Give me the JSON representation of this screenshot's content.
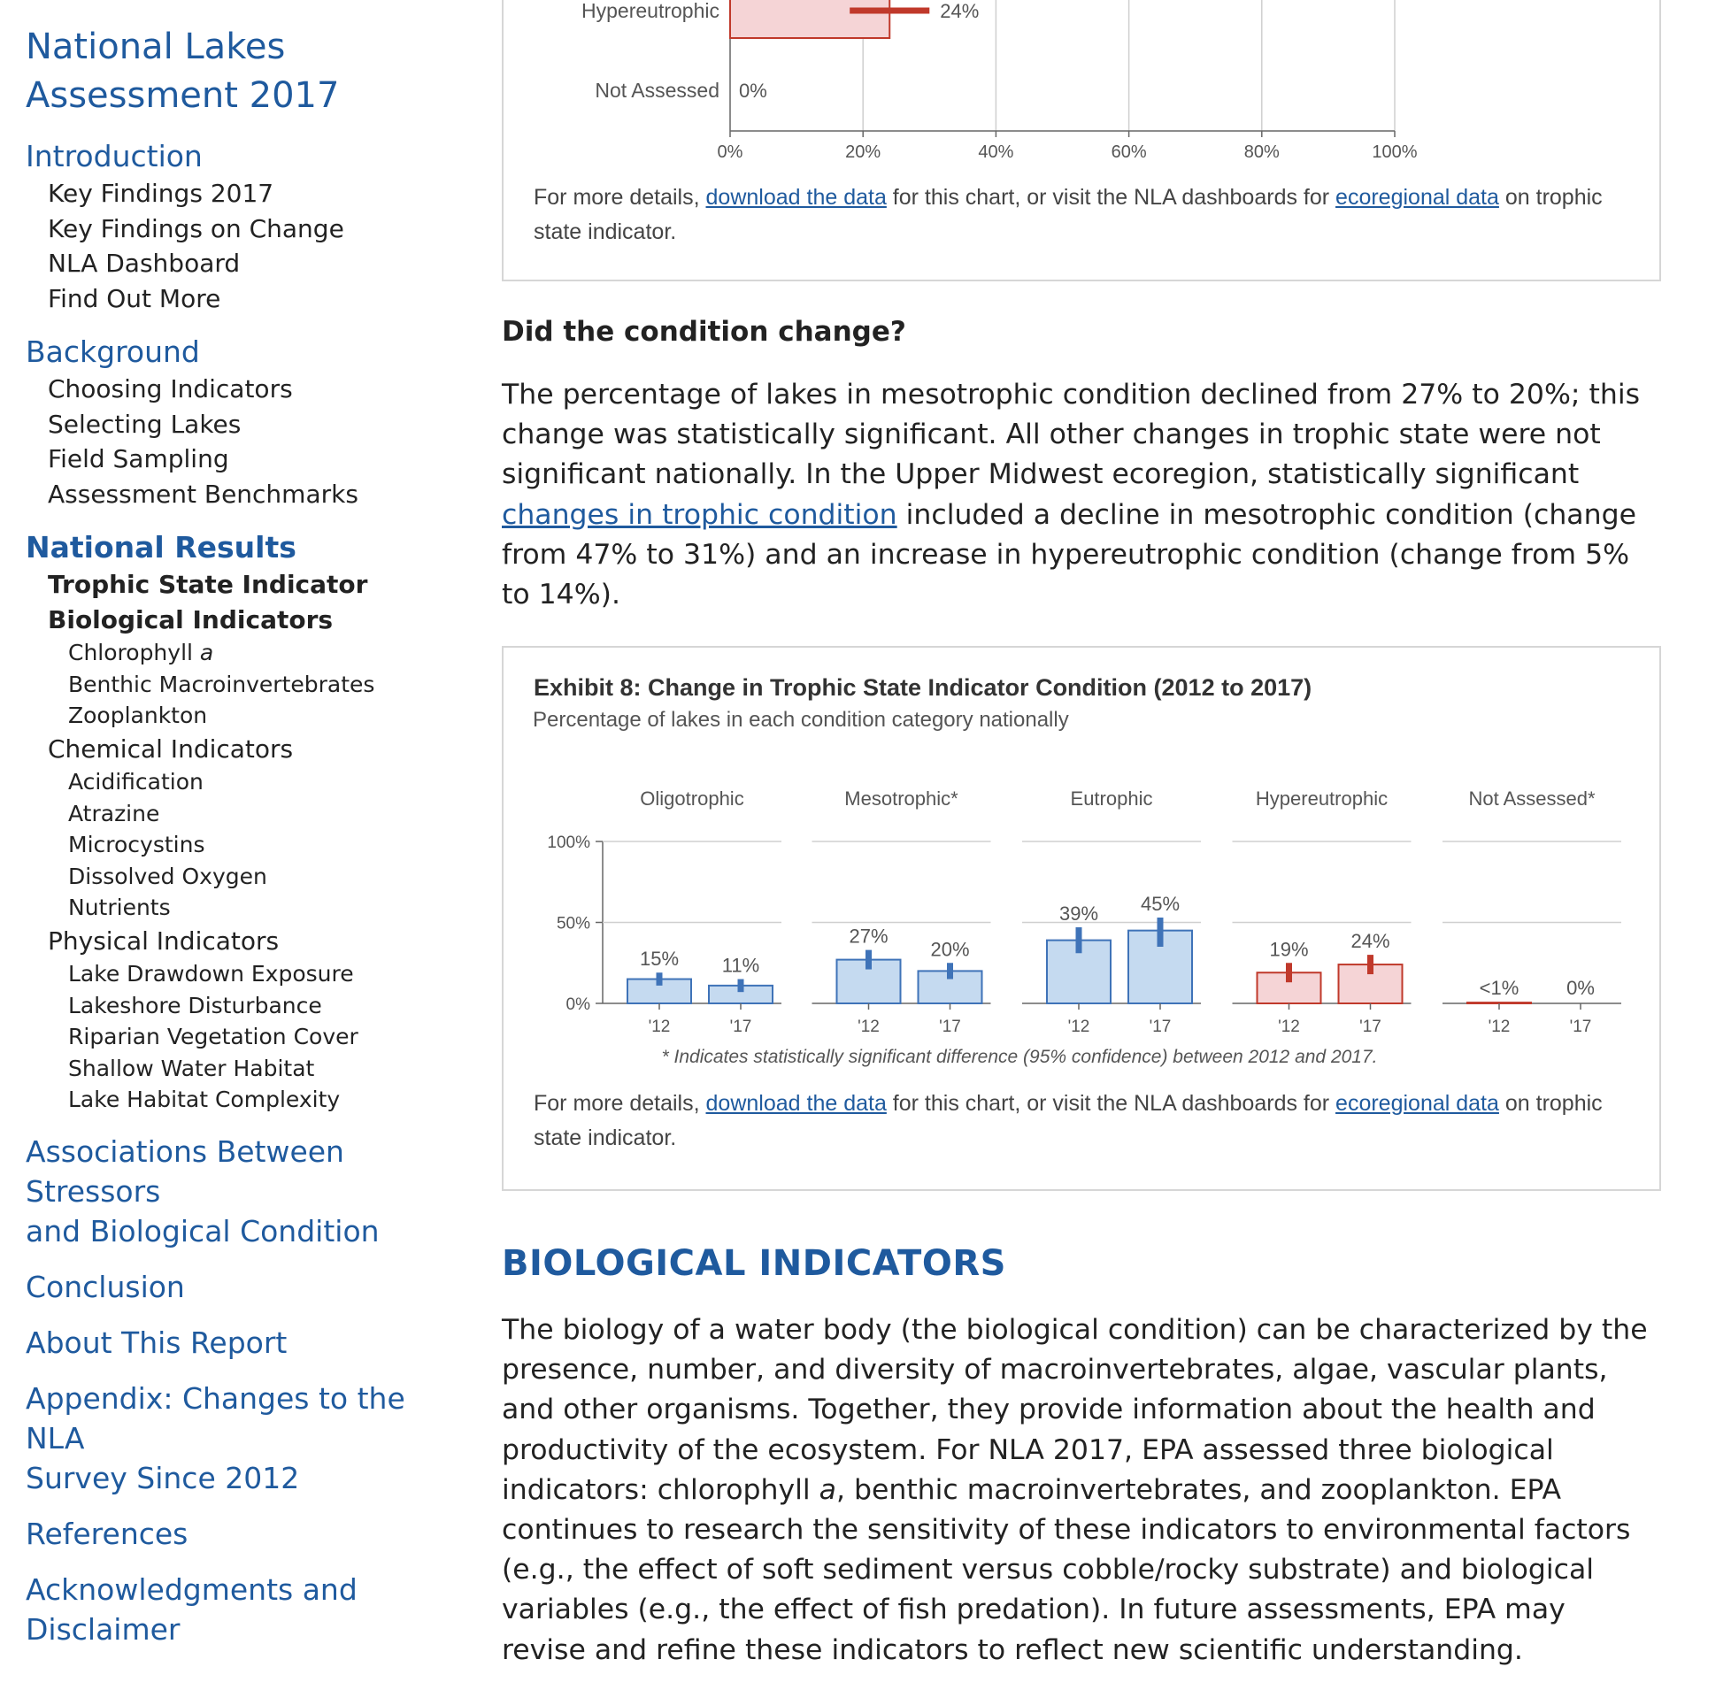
{
  "sidebar": {
    "title_line1": "National Lakes",
    "title_line2": "Assessment 2017",
    "introduction": {
      "label": "Introduction",
      "items": [
        "Key Findings 2017",
        "Key Findings on Change",
        "NLA Dashboard",
        "Find Out More"
      ]
    },
    "background": {
      "label": "Background",
      "items": [
        "Choosing Indicators",
        "Selecting Lakes",
        "Field Sampling",
        "Assessment Benchmarks"
      ]
    },
    "national_results": {
      "label": "National Results",
      "trophic": "Trophic State Indicator",
      "biological": {
        "label": "Biological Indicators",
        "chlorophyll": "Chlorophyll",
        "chlorophyll_suffix": "a",
        "items": [
          "Benthic Macroinvertebrates",
          "Zooplankton"
        ]
      },
      "chemical": {
        "label": "Chemical Indicators",
        "items": [
          "Acidification",
          "Atrazine",
          "Microcystins",
          "Dissolved Oxygen",
          "Nutrients"
        ]
      },
      "physical": {
        "label": "Physical Indicators",
        "items": [
          "Lake Drawdown Exposure",
          "Lakeshore Disturbance",
          "Riparian Vegetation Cover",
          "Shallow Water Habitat",
          "Lake Habitat Complexity"
        ]
      }
    },
    "associations_line1": "Associations Between Stressors",
    "associations_line2": "and Biological Condition",
    "conclusion": "Conclusion",
    "about": "About This Report",
    "appendix_line1": "Appendix: Changes to the NLA",
    "appendix_line2": "Survey Since 2012",
    "references": "References",
    "ack_line1": "Acknowledgments and",
    "ack_line2": "Disclaimer"
  },
  "top_chart": {
    "note_prefix": "For more details, ",
    "note_link1": "download the data",
    "note_middle": " for this chart, or visit the NLA dashboards for ",
    "note_link2": "ecoregional data",
    "note_suffix": " on trophic state indicator."
  },
  "change_section": {
    "heading": "Did the condition change?",
    "para_part1": "The percentage of lakes in mesotrophic condition declined from 27% to 20%; this change was statistically significant. All other changes in trophic state were not significant nationally. In the Upper Midwest ecoregion, statistically significant ",
    "para_link": "changes in trophic condition",
    "para_part2": " included a decline in mesotrophic condition (change from 47% to 31%) and an increase in hypereutrophic condition (change from 5% to 14%)."
  },
  "exhibit8": {
    "title": "Exhibit 8: Change in Trophic State Indicator Condition (2012 to 2017)",
    "subtitle": "Percentage of lakes in each condition category nationally",
    "footnote": "* Indicates statistically significant difference (95% confidence) between 2012 and 2017.",
    "note_prefix": "For more details, ",
    "note_link1": "download the data",
    "note_middle": " for this chart, or visit the NLA dashboards for ",
    "note_link2": "ecoregional data",
    "note_suffix": " on trophic state indicator."
  },
  "bio_section": {
    "heading": "BIOLOGICAL INDICATORS",
    "para_part1": "The biology of a water body (the biological condition) can be characterized by the presence, number, and diversity of macroinvertebrates, algae, vascular plants, and other organisms. Together, they provide information about the health and productivity of the ecosystem. For NLA 2017, EPA assessed three biological indicators: chlorophyll ",
    "para_italic": "a",
    "para_part2": ", benthic macroinvertebrates, and zooplankton. EPA continues to research the sensitivity of these indicators to environmental factors (e.g., the effect of soft sediment versus cobble/rocky substrate) and biological variables (e.g., the effect of fish predation). In future assessments, EPA may revise and refine these indicators to reflect new scientific understanding."
  },
  "colors": {
    "blue_fill": "#c5daf0",
    "blue_stroke": "#3f73b8",
    "red_fill": "#f5d4d6",
    "red_stroke": "#c0392b",
    "link": "#1f5a9e",
    "grid": "#cfcfcf",
    "axis": "#666666"
  },
  "chart_data": [
    {
      "type": "bar",
      "orientation": "horizontal",
      "partially_visible": true,
      "categories": [
        "Hypereutrophic",
        "Not Assessed"
      ],
      "values": [
        24,
        0
      ],
      "value_labels": [
        "24%",
        "0%"
      ],
      "xlim": [
        0,
        100
      ],
      "x_ticks": [
        "0%",
        "20%",
        "40%",
        "60%",
        "80%",
        "100%"
      ],
      "error_bar_hypereutrophic": [
        18,
        30
      ],
      "grid": true
    },
    {
      "type": "bar",
      "title": "Exhibit 8: Change in Trophic State Indicator Condition (2012 to 2017)",
      "subtitle": "Percentage of lakes in each condition category nationally",
      "ylim": [
        0,
        100
      ],
      "y_ticks": [
        "0%",
        "50%",
        "100%"
      ],
      "grid": true,
      "panels": [
        {
          "name": "Oligotrophic",
          "color": "blue",
          "categories": [
            "'12",
            "'17"
          ],
          "values": [
            15,
            11
          ],
          "labels": [
            "15%",
            "11%"
          ],
          "errors": [
            [
              11,
              19
            ],
            [
              7,
              15
            ]
          ]
        },
        {
          "name": "Mesotrophic*",
          "color": "blue",
          "categories": [
            "'12",
            "'17"
          ],
          "values": [
            27,
            20
          ],
          "labels": [
            "27%",
            "20%"
          ],
          "errors": [
            [
              21,
              33
            ],
            [
              15,
              25
            ]
          ]
        },
        {
          "name": "Eutrophic",
          "color": "blue",
          "categories": [
            "'12",
            "'17"
          ],
          "values": [
            39,
            45
          ],
          "labels": [
            "39%",
            "45%"
          ],
          "errors": [
            [
              31,
              47
            ],
            [
              35,
              53
            ]
          ]
        },
        {
          "name": "Hypereutrophic",
          "color": "red",
          "categories": [
            "'12",
            "'17"
          ],
          "values": [
            19,
            24
          ],
          "labels": [
            "19%",
            "24%"
          ],
          "errors": [
            [
              13,
              25
            ],
            [
              18,
              30
            ]
          ]
        },
        {
          "name": "Not Assessed*",
          "color": "red",
          "categories": [
            "'12",
            "'17"
          ],
          "values": [
            0.5,
            0
          ],
          "labels": [
            "<1%",
            "0%"
          ],
          "errors": null
        }
      ]
    }
  ]
}
